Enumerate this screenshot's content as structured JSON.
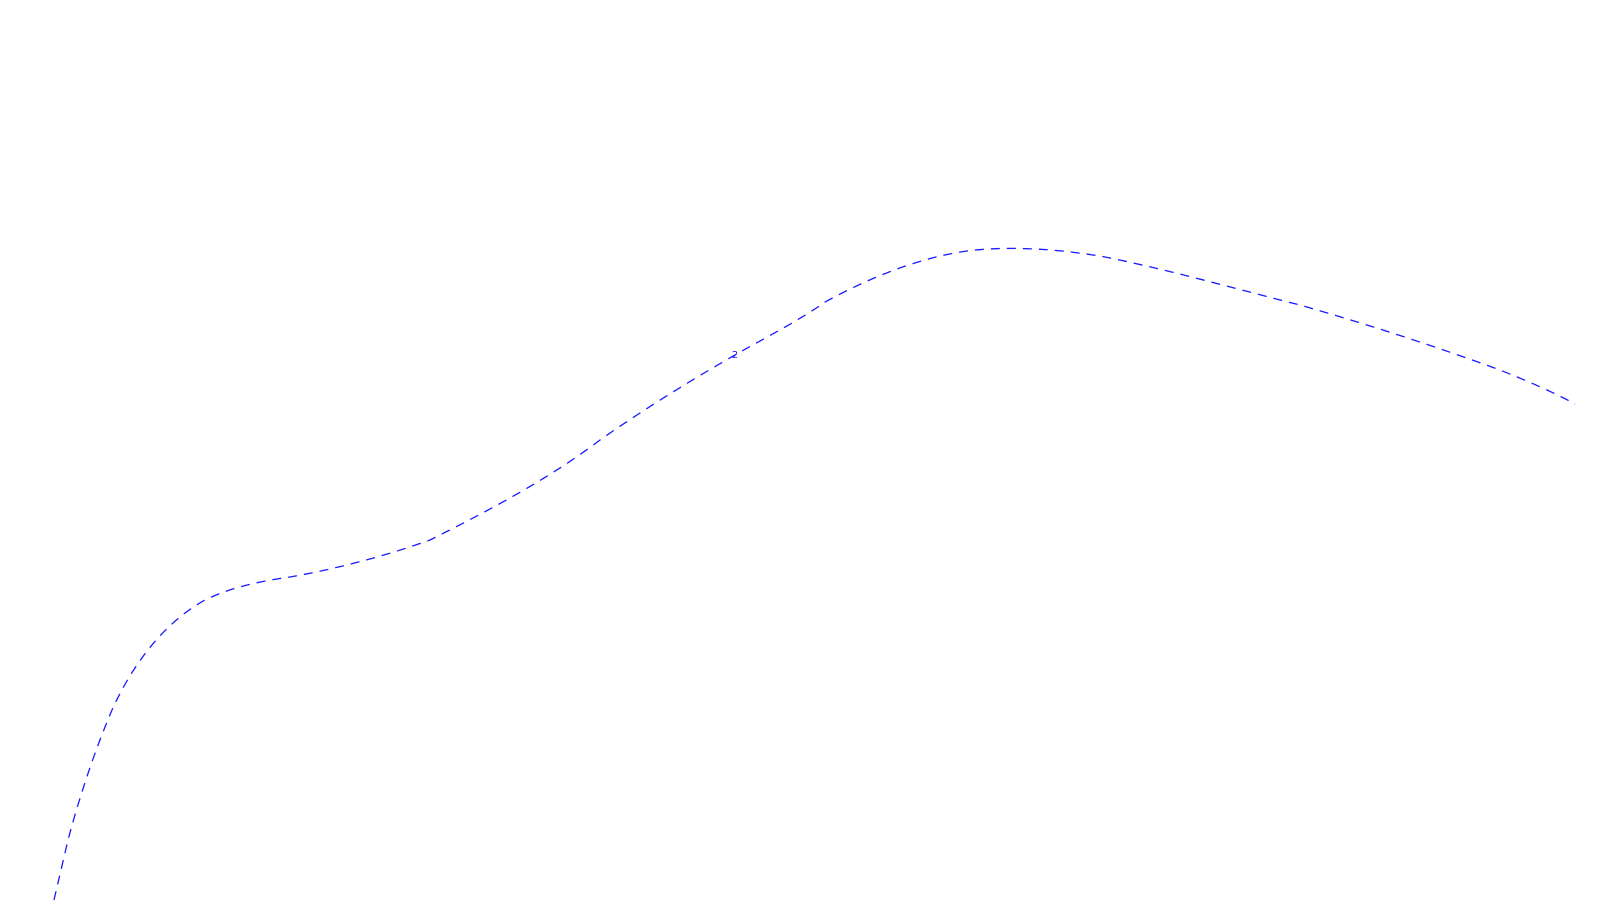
{
  "map": {
    "background_color": "#ffffff",
    "contours": [
      {
        "label": "2",
        "color": "#1a1aff",
        "line_style": "dashed"
      }
    ]
  }
}
